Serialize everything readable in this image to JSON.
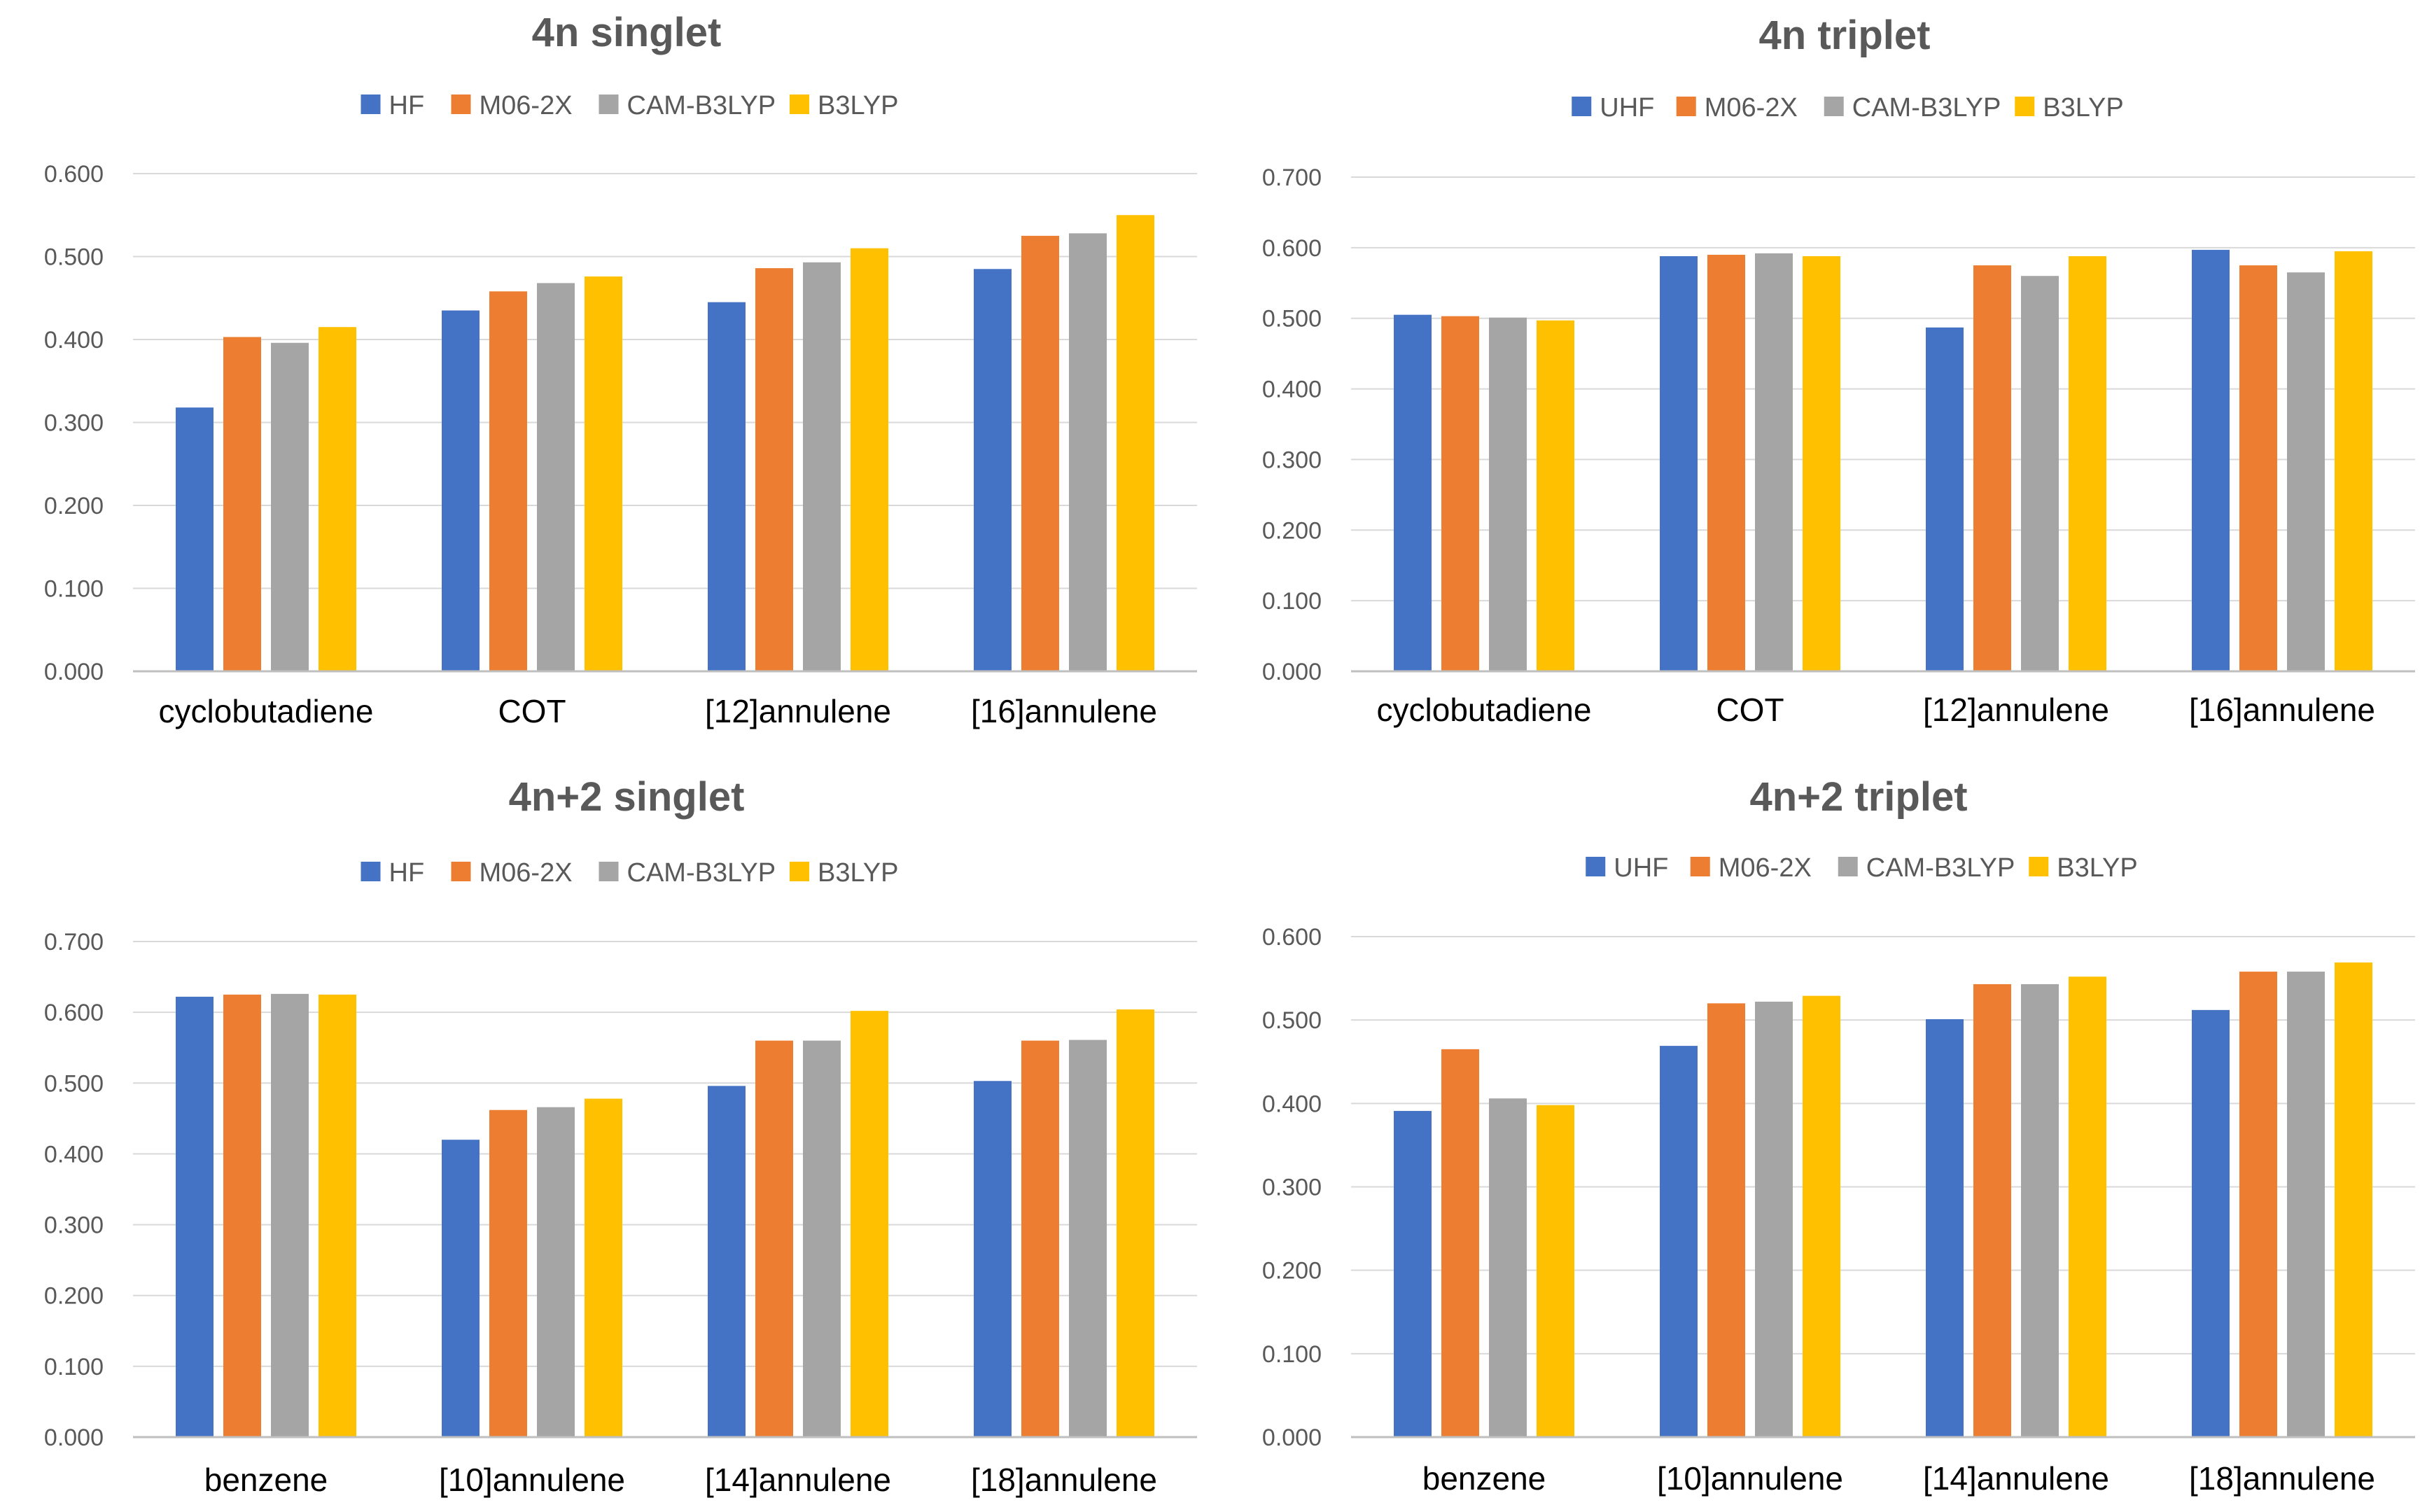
{
  "colors": {
    "blue": "#4472C4",
    "orange": "#ED7D31",
    "gray": "#A5A5A5",
    "gold": "#FFC000"
  },
  "chart_data": [
    {
      "type": "bar",
      "title": "4n singlet",
      "categories": [
        "cyclobutadiene",
        "COT",
        "[12]annulene",
        "[16]annulene"
      ],
      "series": [
        {
          "name": "HF",
          "color": "#4472C4",
          "values": [
            0.318,
            0.435,
            0.445,
            0.485
          ]
        },
        {
          "name": "M06-2X",
          "color": "#ED7D31",
          "values": [
            0.403,
            0.458,
            0.486,
            0.525
          ]
        },
        {
          "name": "CAM-B3LYP",
          "color": "#A5A5A5",
          "values": [
            0.396,
            0.468,
            0.493,
            0.528
          ]
        },
        {
          "name": "B3LYP",
          "color": "#FFC000",
          "values": [
            0.415,
            0.476,
            0.51,
            0.55
          ]
        }
      ],
      "ylim": [
        0,
        0.6
      ],
      "yticks": [
        "0.000",
        "0.100",
        "0.200",
        "0.300",
        "0.400",
        "0.500",
        "0.600"
      ],
      "xlabel": "",
      "ylabel": "",
      "grid": true,
      "legend": "top"
    },
    {
      "type": "bar",
      "title": "4n triplet",
      "categories": [
        "cyclobutadiene",
        "COT",
        "[12]annulene",
        "[16]annulene"
      ],
      "series": [
        {
          "name": "UHF",
          "color": "#4472C4",
          "values": [
            0.505,
            0.588,
            0.487,
            0.597
          ]
        },
        {
          "name": "M06-2X",
          "color": "#ED7D31",
          "values": [
            0.503,
            0.59,
            0.575,
            0.575
          ]
        },
        {
          "name": "CAM-B3LYP",
          "color": "#A5A5A5",
          "values": [
            0.501,
            0.592,
            0.56,
            0.565
          ]
        },
        {
          "name": "B3LYP",
          "color": "#FFC000",
          "values": [
            0.497,
            0.588,
            0.588,
            0.595
          ]
        }
      ],
      "ylim": [
        0,
        0.7
      ],
      "yticks": [
        "0.000",
        "0.100",
        "0.200",
        "0.300",
        "0.400",
        "0.500",
        "0.600",
        "0.700"
      ],
      "xlabel": "",
      "ylabel": "",
      "grid": true,
      "legend": "top"
    },
    {
      "type": "bar",
      "title": "4n+2 singlet",
      "categories": [
        "benzene",
        "[10]annulene",
        "[14]annulene",
        "[18]annulene"
      ],
      "series": [
        {
          "name": "HF",
          "color": "#4472C4",
          "values": [
            0.622,
            0.42,
            0.496,
            0.503
          ]
        },
        {
          "name": "M06-2X",
          "color": "#ED7D31",
          "values": [
            0.625,
            0.462,
            0.56,
            0.56
          ]
        },
        {
          "name": "CAM-B3LYP",
          "color": "#A5A5A5",
          "values": [
            0.626,
            0.466,
            0.56,
            0.561
          ]
        },
        {
          "name": "B3LYP",
          "color": "#FFC000",
          "values": [
            0.625,
            0.478,
            0.602,
            0.604
          ]
        }
      ],
      "ylim": [
        0,
        0.7
      ],
      "yticks": [
        "0.000",
        "0.100",
        "0.200",
        "0.300",
        "0.400",
        "0.500",
        "0.600",
        "0.700"
      ],
      "xlabel": "",
      "ylabel": "",
      "grid": true,
      "legend": "top"
    },
    {
      "type": "bar",
      "title": "4n+2 triplet",
      "categories": [
        "benzene",
        "[10]annulene",
        "[14]annulene",
        "[18]annulene"
      ],
      "series": [
        {
          "name": "UHF",
          "color": "#4472C4",
          "values": [
            0.391,
            0.469,
            0.501,
            0.512
          ]
        },
        {
          "name": "M06-2X",
          "color": "#ED7D31",
          "values": [
            0.465,
            0.52,
            0.543,
            0.558
          ]
        },
        {
          "name": "CAM-B3LYP",
          "color": "#A5A5A5",
          "values": [
            0.406,
            0.522,
            0.543,
            0.558
          ]
        },
        {
          "name": "B3LYP",
          "color": "#FFC000",
          "values": [
            0.398,
            0.529,
            0.552,
            0.569
          ]
        }
      ],
      "ylim": [
        0,
        0.6
      ],
      "yticks": [
        "0.000",
        "0.100",
        "0.200",
        "0.300",
        "0.400",
        "0.500",
        "0.600"
      ],
      "xlabel": "",
      "ylabel": "",
      "grid": true,
      "legend": "top"
    }
  ]
}
